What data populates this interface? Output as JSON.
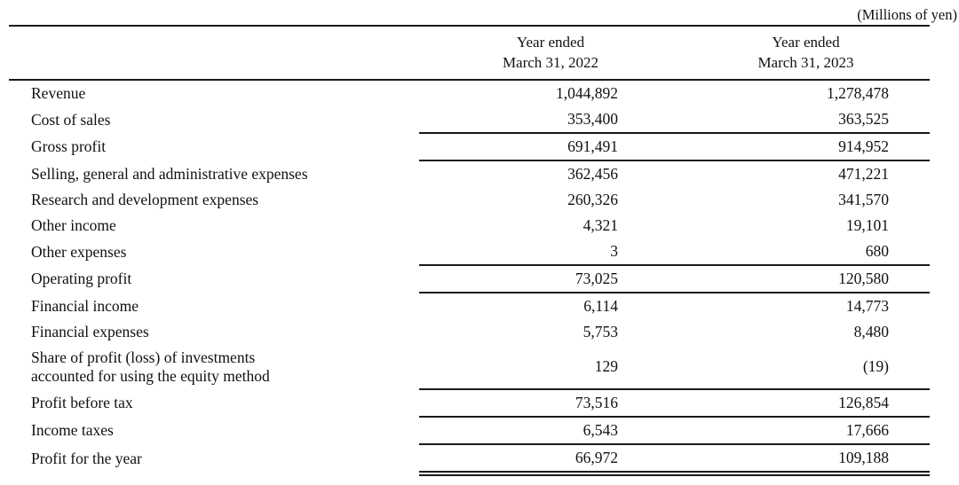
{
  "unit_note": "(Millions of yen)",
  "table": {
    "columns": [
      {
        "line1": "Year ended",
        "line2": "March 31, 2022"
      },
      {
        "line1": "Year ended",
        "line2": "March 31, 2023"
      }
    ],
    "rows": [
      {
        "label": "Revenue",
        "y2022": "1,044,892",
        "y2023": "1,278,478"
      },
      {
        "label": "Cost of sales",
        "y2022": "353,400",
        "y2023": "363,525",
        "rule_below": true
      },
      {
        "label": "Gross profit",
        "y2022": "691,491",
        "y2023": "914,952",
        "rule_below": true
      },
      {
        "label": "Selling, general and administrative expenses",
        "y2022": "362,456",
        "y2023": "471,221"
      },
      {
        "label": "Research and development expenses",
        "y2022": "260,326",
        "y2023": "341,570"
      },
      {
        "label": "Other income",
        "y2022": "4,321",
        "y2023": "19,101"
      },
      {
        "label": "Other expenses",
        "y2022": "3",
        "y2023": "680",
        "rule_below": true
      },
      {
        "label": "Operating profit",
        "y2022": "73,025",
        "y2023": "120,580",
        "rule_below": true
      },
      {
        "label": "Financial income",
        "y2022": "6,114",
        "y2023": "14,773"
      },
      {
        "label": "Financial expenses",
        "y2022": "5,753",
        "y2023": "8,480"
      },
      {
        "label": "Share of profit (loss) of investments",
        "label2": "accounted for using the equity method",
        "y2022": "129",
        "y2023": "(19)",
        "rule_below": true
      },
      {
        "label": "Profit before tax",
        "y2022": "73,516",
        "y2023": "126,854",
        "rule_below": true
      },
      {
        "label": "Income taxes",
        "y2022": "6,543",
        "y2023": "17,666",
        "rule_below": true
      },
      {
        "label": "Profit for the year",
        "y2022": "66,972",
        "y2023": "109,188",
        "double_rule_below": true
      }
    ]
  }
}
